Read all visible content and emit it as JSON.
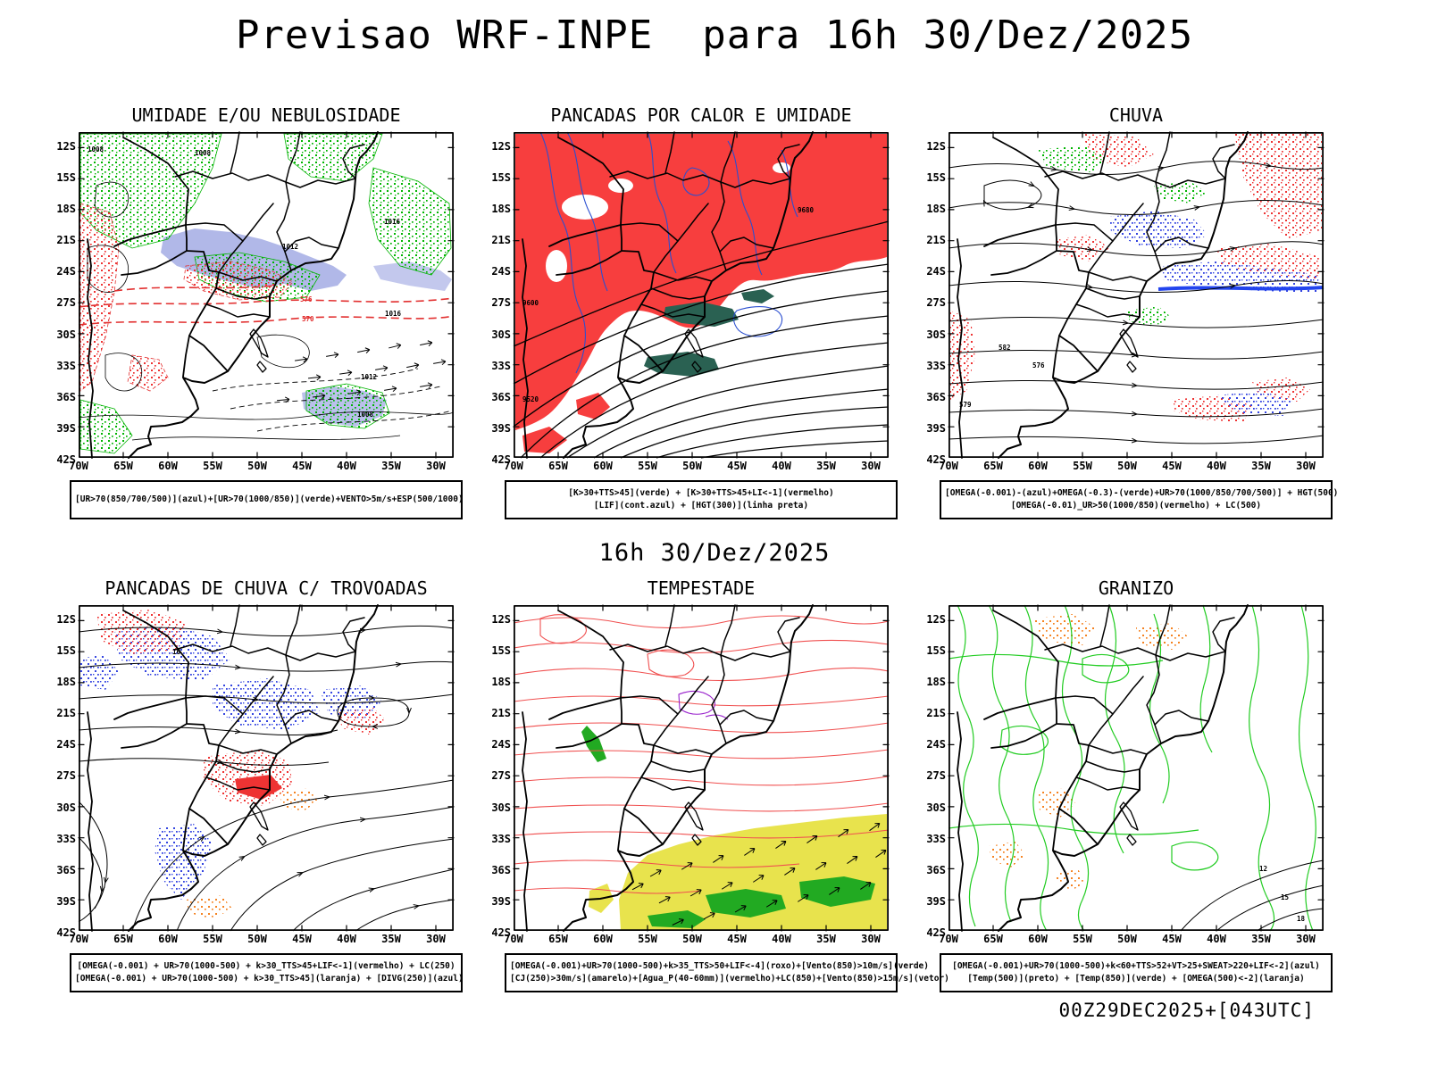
{
  "page": {
    "title": "Previsao WRF-INPE  para 16h 30/Dez/2025",
    "mid_label": "16h 30/Dez/2025",
    "run_stamp": "00Z29DEC2025+[043UTC]"
  },
  "axes": {
    "lat_labels": [
      "12S",
      "15S",
      "18S",
      "21S",
      "24S",
      "27S",
      "30S",
      "33S",
      "36S",
      "39S",
      "42S"
    ],
    "lon_labels": [
      "70W",
      "65W",
      "60W",
      "55W",
      "50W",
      "45W",
      "40W",
      "35W",
      "30W"
    ]
  },
  "panels": [
    {
      "title": "UMIDADE E/OU NEBULOSIDADE",
      "caption1": "[UR>70(850/700/500)](azul)+[UR>70(1000/850)](verde)+VENTO>5m/s+ESP(500/1000)",
      "caption2": "",
      "map_labels": [
        "1008",
        "1008",
        "1012",
        "1016",
        "576",
        "570",
        "1016",
        "1012",
        "1008"
      ]
    },
    {
      "title": "PANCADAS POR CALOR E UMIDADE",
      "caption1": "[K>30+TTS>45](verde) + [K>30+TTS>45+LI<-1](vermelho)",
      "caption2": "[LIF](cont.azul) + [HGT(300)](linha preta)",
      "map_labels": [
        "9680",
        "9600",
        "9520"
      ]
    },
    {
      "title": "CHUVA",
      "caption1": "[OMEGA(-0.001)-(azul)+OMEGA(-0.3)-(verde)+UR>70(1000/850/700/500)] + HGT(500)",
      "caption2": "[OMEGA(-0.01)_UR>50(1000/850)(vermelho) + LC(500)",
      "map_labels": [
        "582",
        "576",
        "579"
      ]
    },
    {
      "title": "PANCADAS DE CHUVA C/ TROVOADAS",
      "caption1": "[OMEGA(-0.001) + UR>70(1000-500) + k>30_TTS>45+LIF<-1](vermelho) + LC(250)",
      "caption2": "[OMEGA(-0.001) + UR>70(1000-500) + k>30_TTS>45](laranja) + [DIVG(250)](azul)",
      "map_labels": [
        "16"
      ]
    },
    {
      "title": "TEMPESTADE",
      "caption1": "[OMEGA(-0.001)+UR>70(1000-500)+k>35_TTS>50+LIF<-4](roxo)+[Vento(850)>10m/s](verde)",
      "caption2": "[CJ(250)>30m/s](amarelo)+[Agua_P(40-60mm)](vermelho)+LC(850)+[Vento(850)>15m/s](vetor)",
      "map_labels": []
    },
    {
      "title": "GRANIZO",
      "caption1": "[OMEGA(-0.001)+UR>70(1000-500)+k<60+TTS>52+VT>25+SWEAT>220+LIF<-2](azul)",
      "caption2": "[Temp(500)](preto) + [Temp(850)](verde) + [OMEGA(500)<-2](laranja)",
      "map_labels": [
        "12",
        "15",
        "18"
      ]
    }
  ],
  "colors": {
    "red_fill": "#f73e3e",
    "green": "#00b400",
    "blue_contour": "#2b4fd0",
    "yellow": "#e8e34d",
    "orange": "#f58220",
    "purple": "#9922cc",
    "periwinkle": "#a9b0e6",
    "teal": "#2a6152"
  }
}
